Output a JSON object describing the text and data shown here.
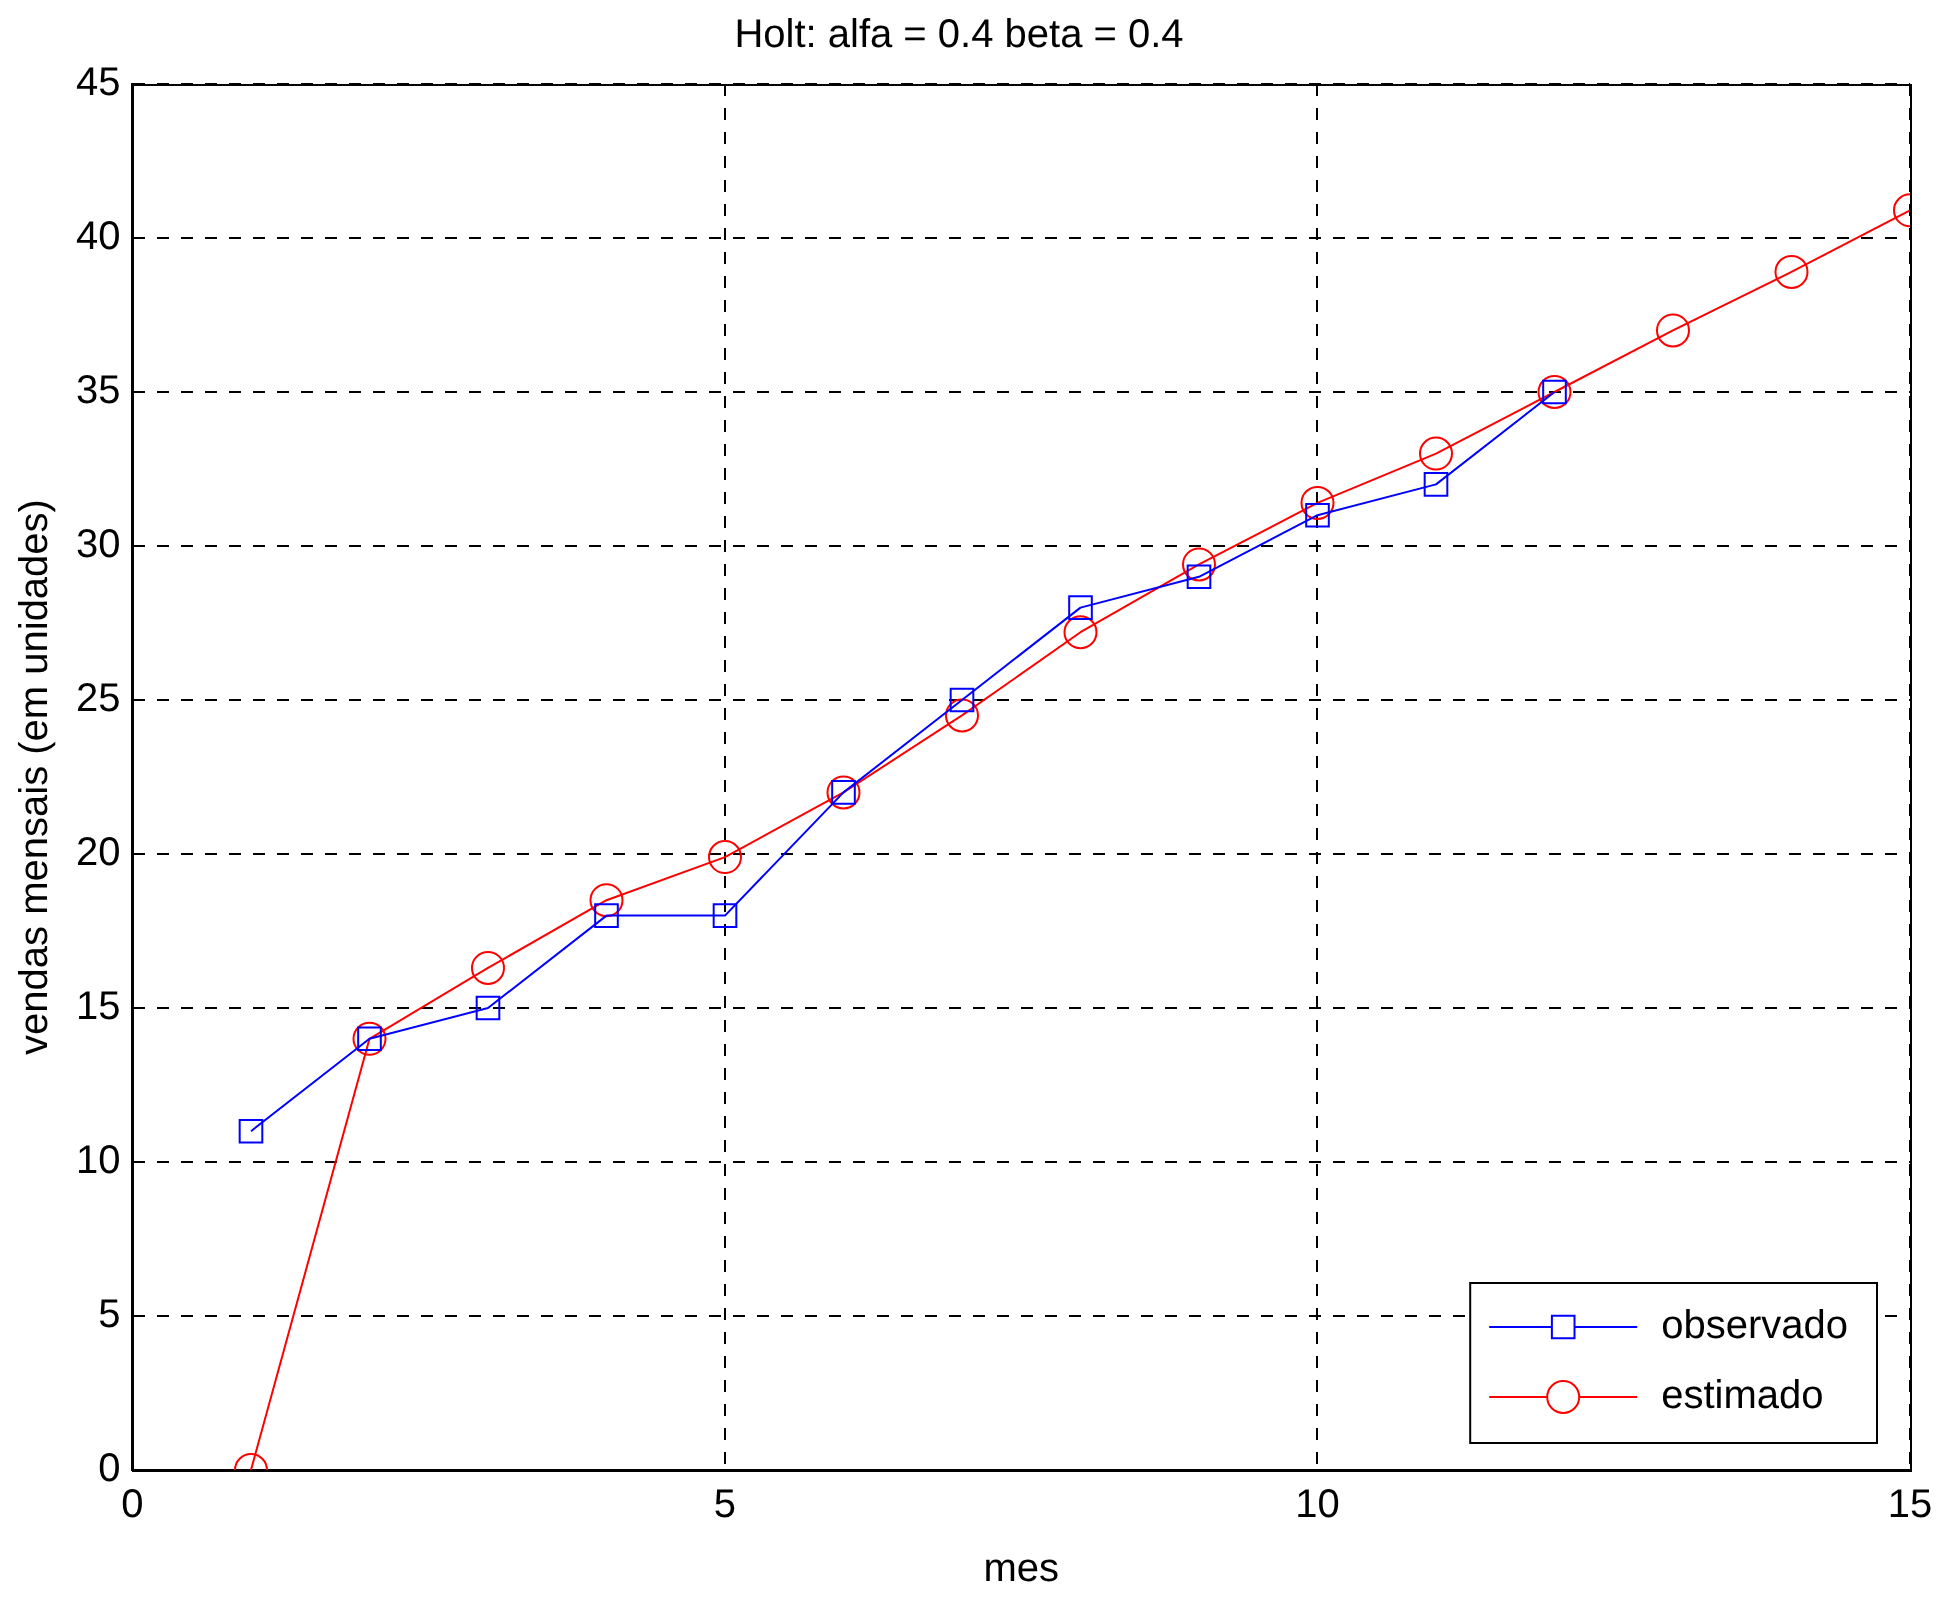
{
  "chart_data": {
    "type": "line",
    "title": "Holt: alfa = 0.4 beta = 0.4",
    "xlabel": "mes",
    "ylabel": "vendas mensais (em unidades)",
    "xlim": [
      0,
      15
    ],
    "xticks": [
      0,
      5,
      10,
      15
    ],
    "ylim": [
      0,
      45
    ],
    "yticks": [
      0,
      5,
      10,
      15,
      20,
      25,
      30,
      35,
      40,
      45
    ],
    "grid": true,
    "legend": "bottom right",
    "line_style": "solid",
    "series": [
      {
        "name": "observado",
        "color": "#0000ff",
        "marker": "square",
        "x": [
          1,
          2,
          3,
          4,
          5,
          6,
          7,
          8,
          9,
          10,
          11,
          12
        ],
        "values": [
          11,
          14,
          15,
          18,
          18,
          22,
          25,
          28,
          29,
          31,
          32,
          35
        ]
      },
      {
        "name": "estimado",
        "color": "#ff0000",
        "marker": "circle",
        "x": [
          1,
          2,
          3,
          4,
          5,
          6,
          7,
          8,
          9,
          10,
          11,
          12,
          13,
          14,
          15
        ],
        "values": [
          0,
          14,
          16.3,
          18.5,
          19.9,
          22,
          24.5,
          27.2,
          29.4,
          31.4,
          33,
          35,
          37,
          38.9,
          40.9
        ]
      }
    ]
  }
}
